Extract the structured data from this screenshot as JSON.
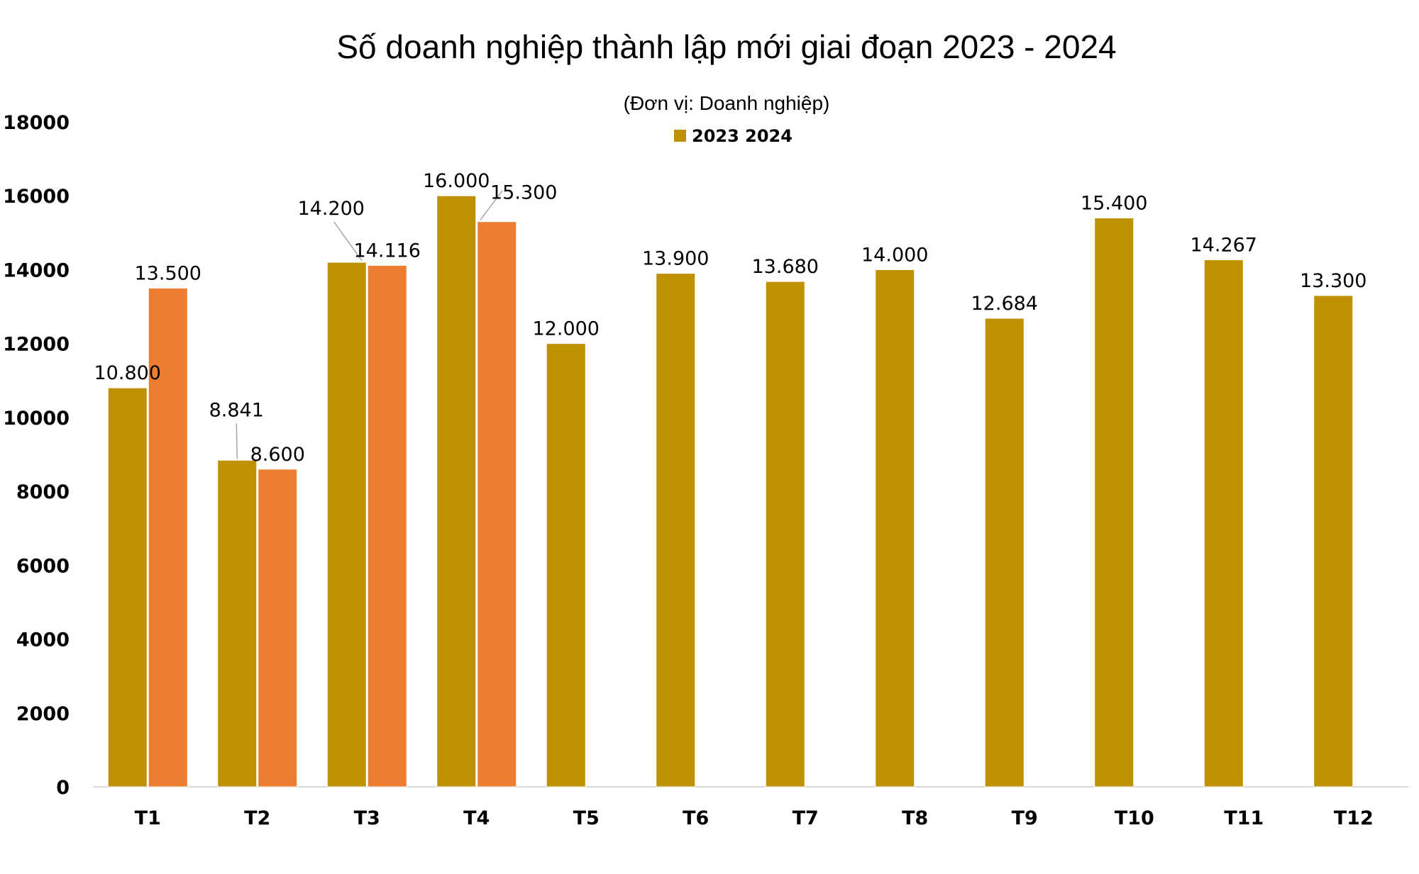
{
  "chart_data": {
    "type": "bar",
    "title": "Số doanh nghiệp thành lập mới giai đoạn 2023 - 2024",
    "subtitle": "(Đơn vị: Doanh nghiệp)",
    "legend": {
      "label": "2023 2024",
      "position": "top",
      "color": "#BF9000"
    },
    "categories": [
      "T1",
      "T2",
      "T3",
      "T4",
      "T5",
      "T6",
      "T7",
      "T8",
      "T9",
      "T10",
      "T11",
      "T12"
    ],
    "series": [
      {
        "values": [
          10800,
          8841,
          14200,
          16000,
          12000,
          13900,
          13680,
          14000,
          12684,
          15400,
          14267,
          13300
        ],
        "labels": [
          "10.800",
          "8.841",
          "14.200",
          "16.000",
          "12.000",
          "13.900",
          "13.680",
          "14.000",
          "12.684",
          "15.400",
          "14.267",
          "13.300"
        ],
        "color": "#BF9000"
      },
      {
        "values": [
          13500,
          8600,
          14116,
          15300,
          null,
          null,
          null,
          null,
          null,
          null,
          null,
          null
        ],
        "labels": [
          "13.500",
          "8.600",
          "14.116",
          "15.300",
          null,
          null,
          null,
          null,
          null,
          null,
          null,
          null
        ],
        "color": "#ED7D31"
      }
    ],
    "yticks": [
      "0",
      "2000",
      "4000",
      "6000",
      "8000",
      "10000",
      "12000",
      "14000",
      "16000",
      "18000"
    ],
    "ylim": [
      0,
      18000
    ],
    "grid": false
  }
}
